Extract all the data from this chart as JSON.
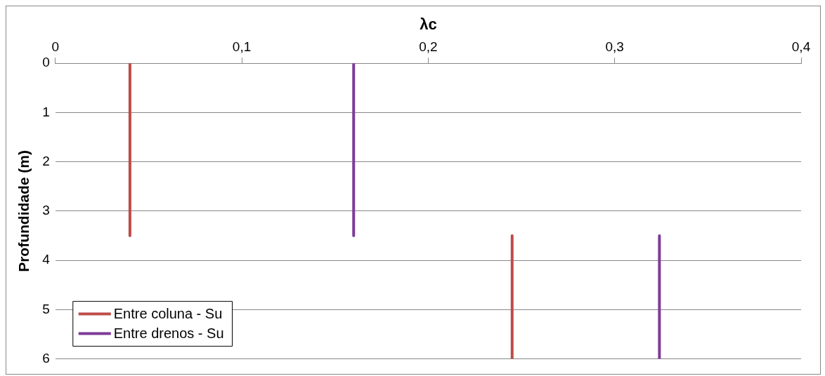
{
  "chart_data": {
    "type": "line",
    "xlabel": "λc",
    "ylabel": "Profundidade (m)",
    "xlim": [
      0,
      0.4
    ],
    "xticks": [
      {
        "value": 0,
        "label": "0"
      },
      {
        "value": 0.1,
        "label": "0,1"
      },
      {
        "value": 0.2,
        "label": "0,2"
      },
      {
        "value": 0.3,
        "label": "0,3"
      },
      {
        "value": 0.4,
        "label": "0,4"
      }
    ],
    "ylim": [
      6,
      0
    ],
    "yticks": [
      0,
      1,
      2,
      3,
      4,
      5,
      6
    ],
    "grid": "y",
    "legend": "bottom left",
    "marker": "none",
    "line_style": "solid",
    "series": [
      {
        "name": "Entre coluna - Su",
        "color": "#be4b48",
        "x": [
          0.04,
          0.04,
          null,
          0.245,
          0.245
        ],
        "values": [
          0,
          3.5,
          null,
          3.5,
          6
        ]
      },
      {
        "name": "Entre drenos - Su",
        "color": "#7d3c98",
        "x": [
          0.16,
          0.16,
          null,
          0.324,
          0.324
        ],
        "values": [
          0,
          3.5,
          null,
          3.5,
          6
        ]
      }
    ]
  }
}
